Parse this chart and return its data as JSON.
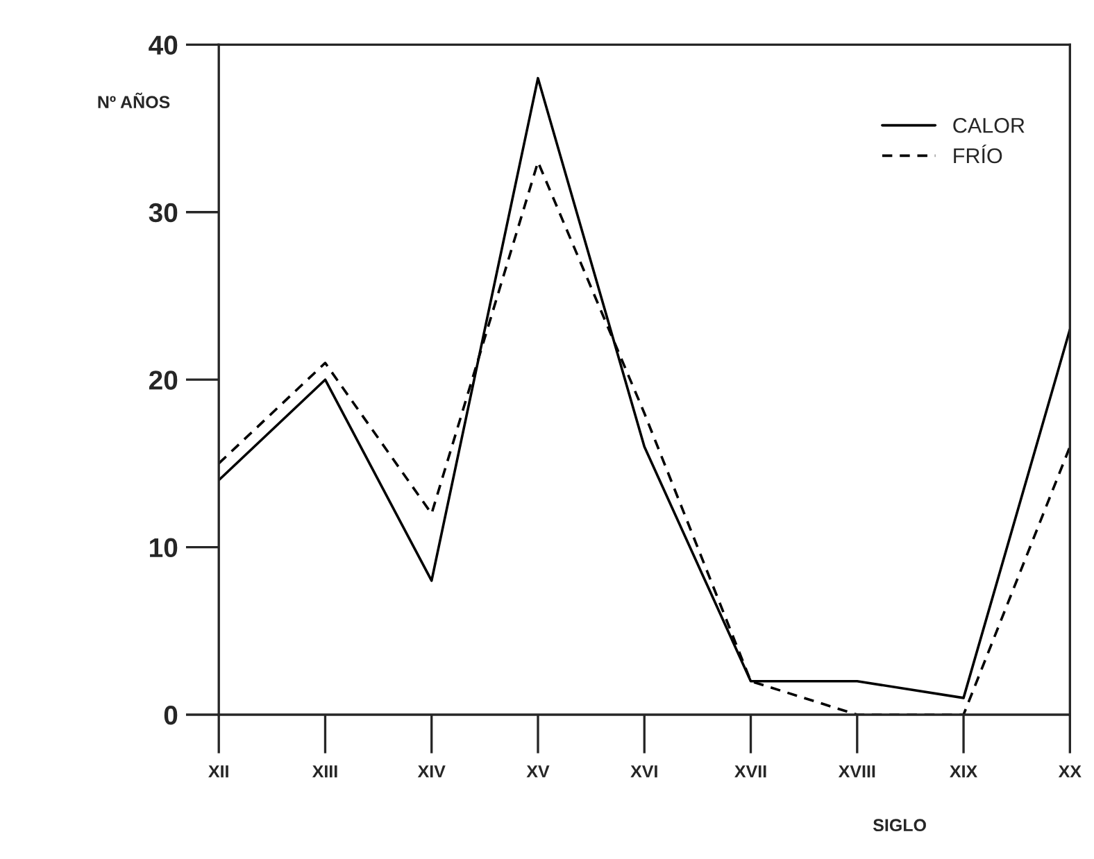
{
  "chart_data": {
    "type": "line",
    "xlabel": "SIGLO",
    "ylabel": "Nº AÑOS",
    "categories": [
      "XII",
      "XIII",
      "XIV",
      "XV",
      "XVI",
      "XVII",
      "XVIII",
      "XIX",
      "XX"
    ],
    "series": [
      {
        "name": "CALOR",
        "color": "#000000",
        "line_style": "solid",
        "values": [
          14,
          20,
          8,
          38,
          16,
          2,
          2,
          1,
          23
        ]
      },
      {
        "name": "FRÍO",
        "color": "#000000",
        "line_style": "dashed",
        "values": [
          15,
          21,
          12,
          33,
          18,
          2,
          0,
          0,
          16
        ]
      }
    ],
    "ylim": [
      0,
      40
    ],
    "yticks": [
      0,
      10,
      20,
      30,
      40
    ],
    "grid": false,
    "legend": "top right",
    "marker": "none"
  }
}
